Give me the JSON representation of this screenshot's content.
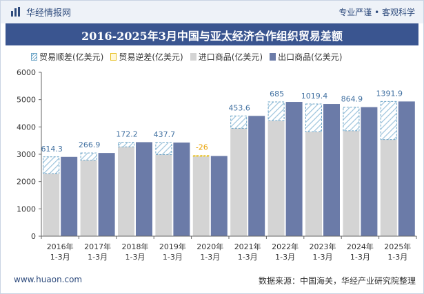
{
  "header": {
    "brand": "华经情报网",
    "slogan": "专业严谨 • 客观科学",
    "logo_icon": "bar-logo-icon"
  },
  "title": "2016-2025年3月中国与亚太经济合作组织贸易差额",
  "legend": {
    "surplus": "贸易顺差(亿美元)",
    "deficit": "贸易逆差(亿美元)",
    "import": "进口商品(亿美元)",
    "export": "出口商品(亿美元)"
  },
  "footer": {
    "site": "www.huaon.com",
    "source": "数据来源：中国海关，华经产业研究院整理"
  },
  "colors": {
    "import": "#d4d4d4",
    "export": "#6b7ba8",
    "surplus_stroke": "#6aa3c6",
    "surplus_label": "#3f6fa0",
    "deficit_stroke": "#e8c020",
    "deficit_label": "#e8a000"
  },
  "chart_data": {
    "type": "bar",
    "categories": [
      "2016年\n1-3月",
      "2017年\n1-3月",
      "2018年\n1-3月",
      "2019年\n1-3月",
      "2020年\n1-3月",
      "2021年\n1-3月",
      "2022年\n1-3月",
      "2023年\n1-3月",
      "2024年\n1-3月",
      "2025年\n1-3月"
    ],
    "ylim": [
      0,
      6000
    ],
    "yticks": [
      0,
      1000,
      2000,
      3000,
      4000,
      5000,
      6000
    ],
    "grid": false,
    "legend_position": "top",
    "series": [
      {
        "name": "进口商品(亿美元)",
        "values": [
          2290,
          2780,
          3270,
          2990,
          2960,
          3950,
          4230,
          3820,
          3860,
          3540
        ]
      },
      {
        "name": "出口商品(亿美元)",
        "values": [
          2904.3,
          3046.9,
          3442.2,
          3427.7,
          2934,
          4403.6,
          4915,
          4839.4,
          4724.9,
          4931.9
        ]
      }
    ],
    "balance": {
      "values": [
        614.3,
        266.9,
        172.2,
        437.7,
        -26,
        453.6,
        685,
        1019.4,
        864.9,
        1391.9
      ],
      "labels": [
        "614.3",
        "266.9",
        "172.2",
        "437.7",
        "-26",
        "453.6",
        "685",
        "1019.4",
        "864.9",
        "1391.9"
      ]
    }
  }
}
